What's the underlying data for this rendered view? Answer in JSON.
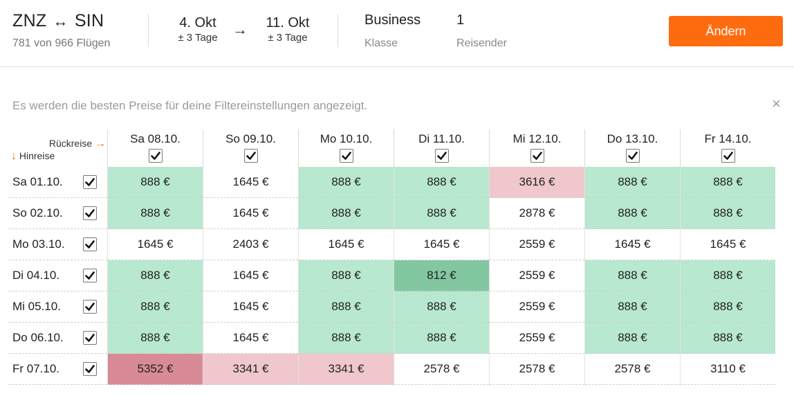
{
  "header": {
    "origin": "ZNZ",
    "destination": "SIN",
    "route_arrow": "↔",
    "flights_count": "781 von 966 Flügen",
    "depart_date": "4. Okt",
    "depart_flex": "± 3 Tage",
    "date_arrow": "→",
    "return_date": "11. Okt",
    "return_flex": "± 3 Tage",
    "class_value": "Business",
    "class_label": "Klasse",
    "pax_value": "1",
    "pax_label": "Reisender",
    "change_button": "Ändern"
  },
  "info_text": "Es werden die besten Preise für deine Filtereinstellungen angezeigt.",
  "close_symbol": "×",
  "grid": {
    "return_label": "Rückreise",
    "return_arrow": "→",
    "depart_label": "Hinreise",
    "depart_arrow": "↓",
    "columns": [
      "Sa 08.10.",
      "So 09.10.",
      "Mo 10.10.",
      "Di 11.10.",
      "Mi 12.10.",
      "Do 13.10.",
      "Fr 14.10."
    ],
    "rows": [
      {
        "label": "Sa 01.10.",
        "prices": [
          "888 €",
          "1645 €",
          "888 €",
          "888 €",
          "3616 €",
          "888 €",
          "888 €"
        ],
        "tones": [
          "g",
          "",
          "g",
          "g",
          "r",
          "g",
          "g"
        ]
      },
      {
        "label": "So 02.10.",
        "prices": [
          "888 €",
          "1645 €",
          "888 €",
          "888 €",
          "2878 €",
          "888 €",
          "888 €"
        ],
        "tones": [
          "g",
          "",
          "g",
          "g",
          "",
          "g",
          "g"
        ]
      },
      {
        "label": "Mo 03.10.",
        "prices": [
          "1645 €",
          "2403 €",
          "1645 €",
          "1645 €",
          "2559 €",
          "1645 €",
          "1645 €"
        ],
        "tones": [
          "",
          "",
          "",
          "",
          "",
          "",
          ""
        ]
      },
      {
        "label": "Di 04.10.",
        "prices": [
          "888 €",
          "1645 €",
          "888 €",
          "812 €",
          "2559 €",
          "888 €",
          "888 €"
        ],
        "tones": [
          "g",
          "",
          "g",
          "g2",
          "",
          "g",
          "g"
        ]
      },
      {
        "label": "Mi 05.10.",
        "prices": [
          "888 €",
          "1645 €",
          "888 €",
          "888 €",
          "2559 €",
          "888 €",
          "888 €"
        ],
        "tones": [
          "g",
          "",
          "g",
          "g",
          "",
          "g",
          "g"
        ]
      },
      {
        "label": "Do 06.10.",
        "prices": [
          "888 €",
          "1645 €",
          "888 €",
          "888 €",
          "2559 €",
          "888 €",
          "888 €"
        ],
        "tones": [
          "g",
          "",
          "g",
          "g",
          "",
          "g",
          "g"
        ]
      },
      {
        "label": "Fr 07.10.",
        "prices": [
          "5352 €",
          "3341 €",
          "3341 €",
          "2578 €",
          "2578 €",
          "2578 €",
          "3110 €"
        ],
        "tones": [
          "r2",
          "r",
          "r",
          "",
          "",
          "",
          ""
        ]
      }
    ]
  },
  "colors": {
    "accent": "#ff6b0f",
    "cheap": "#b8e8cf",
    "cheapest": "#82c7a0",
    "expensive": "#f0c7cc",
    "most_expensive": "#d88b96"
  },
  "icons": {
    "checkbox": "checkmark-icon",
    "close": "close-icon"
  }
}
